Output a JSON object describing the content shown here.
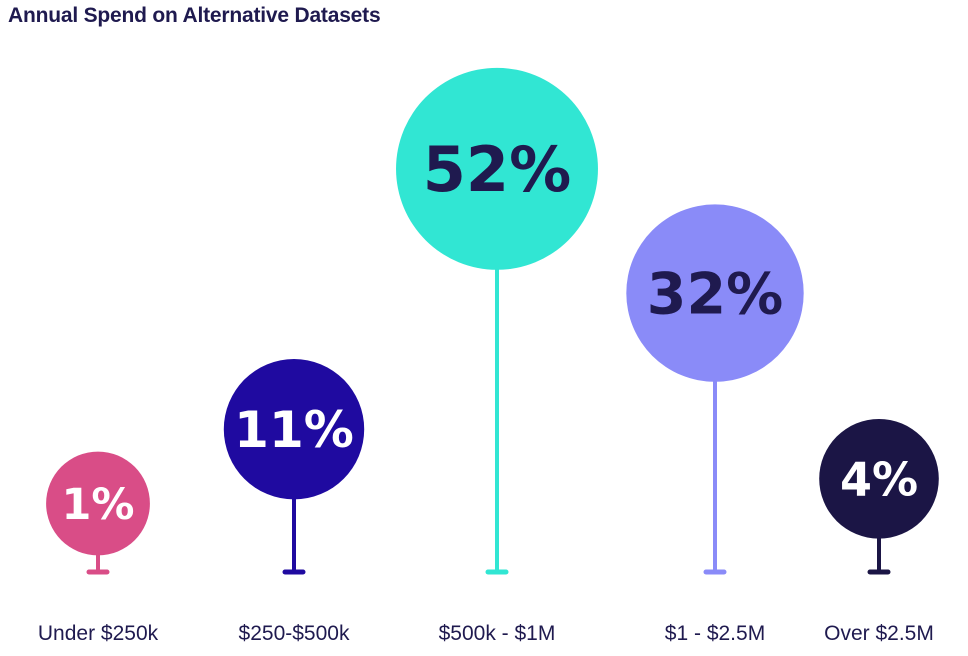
{
  "title": "Annual Spend on Alternative Datasets",
  "chart_data": {
    "type": "bubble-lollipop",
    "title": "Annual Spend on Alternative Datasets",
    "unit": "%",
    "categories": [
      "Under $250k",
      "$250-$500k",
      "$500k - $1M",
      "$1 - $2.5M",
      "Over $2.5M"
    ],
    "values": [
      1,
      11,
      52,
      32,
      4
    ],
    "labels": [
      "1%",
      "11%",
      "52%",
      "32%",
      "4%"
    ],
    "colors": [
      "#d94d87",
      "#1f0aa0",
      "#31e6d3",
      "#8a8bf8",
      "#1b1545"
    ],
    "label_colors": [
      "#ffffff",
      "#ffffff",
      "#1f1a4f",
      "#1f1a4f",
      "#ffffff"
    ]
  }
}
